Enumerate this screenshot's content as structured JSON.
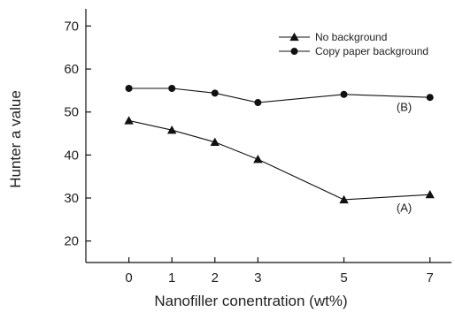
{
  "chart_data": {
    "type": "line",
    "xlabel": "Nanofiller conentration (wt%)",
    "ylabel": "Hunter a value",
    "x": [
      0,
      1,
      2,
      3,
      5,
      7
    ],
    "x_ticks": [
      "0",
      "1",
      "2",
      "3",
      "5",
      "7"
    ],
    "y_ticks": [
      "20",
      "30",
      "40",
      "50",
      "60",
      "70"
    ],
    "xlim": [
      -1,
      7.5
    ],
    "ylim": [
      15,
      74
    ],
    "grid": false,
    "legend_position": "top-right",
    "series": [
      {
        "name": "No background",
        "marker": "triangle",
        "values": [
          48.0,
          45.8,
          43.0,
          39.0,
          29.6,
          30.8
        ]
      },
      {
        "name": "Copy paper background",
        "marker": "circle",
        "values": [
          55.5,
          55.5,
          54.4,
          52.2,
          54.1,
          53.4
        ]
      }
    ],
    "annotations": [
      {
        "text": "(A)",
        "x": 6.4,
        "y": 26.8
      },
      {
        "text": "(B)",
        "x": 6.4,
        "y": 50.3
      }
    ]
  }
}
